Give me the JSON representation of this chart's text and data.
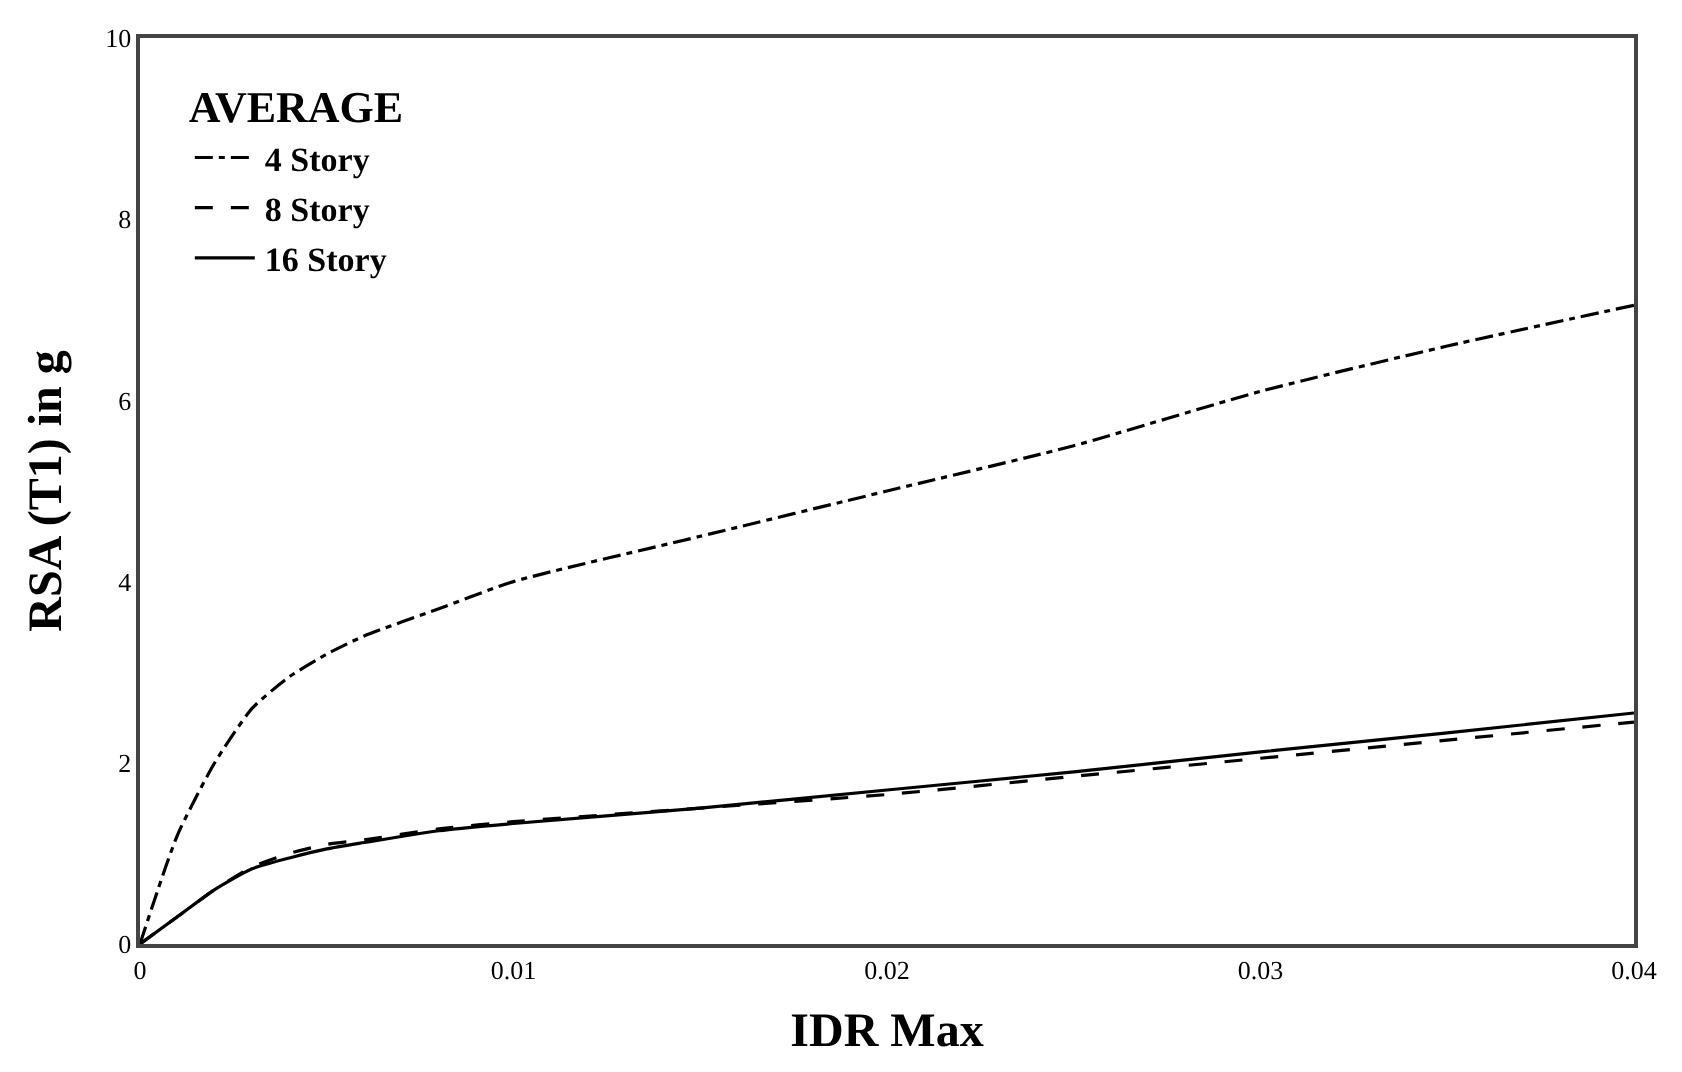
{
  "chart_data": {
    "type": "line",
    "xlabel": "IDR Max",
    "ylabel": "RSA (T1) in g",
    "legend_title": "AVERAGE",
    "legend": "top left",
    "marker": "none",
    "x": [
      0,
      0.001,
      0.002,
      0.003,
      0.004,
      0.005,
      0.006,
      0.008,
      0.01,
      0.015,
      0.02,
      0.025,
      0.03,
      0.035,
      0.04
    ],
    "xlim": [
      0,
      0.04
    ],
    "xticks": [
      0,
      0.01,
      0.02,
      0.03,
      0.04
    ],
    "ylim": [
      0,
      10
    ],
    "yticks": [
      0,
      2,
      4,
      6,
      8,
      10
    ],
    "series": [
      {
        "name": "4 Story",
        "color": "#000000",
        "line_style": "dashdot",
        "values": [
          0,
          1.2,
          2.0,
          2.6,
          2.95,
          3.2,
          3.4,
          3.7,
          4.0,
          4.5,
          5.0,
          5.5,
          6.1,
          6.6,
          7.05
        ]
      },
      {
        "name": "8 Story",
        "color": "#000000",
        "line_style": "dashed",
        "values": [
          0,
          0.3,
          0.6,
          0.85,
          1.0,
          1.1,
          1.15,
          1.27,
          1.35,
          1.5,
          1.65,
          1.85,
          2.05,
          2.25,
          2.45
        ]
      },
      {
        "name": "16 Story",
        "color": "#000000",
        "line_style": "solid",
        "values": [
          0,
          0.3,
          0.6,
          0.83,
          0.95,
          1.05,
          1.12,
          1.25,
          1.33,
          1.5,
          1.7,
          1.9,
          2.12,
          2.33,
          2.55
        ]
      }
    ]
  }
}
